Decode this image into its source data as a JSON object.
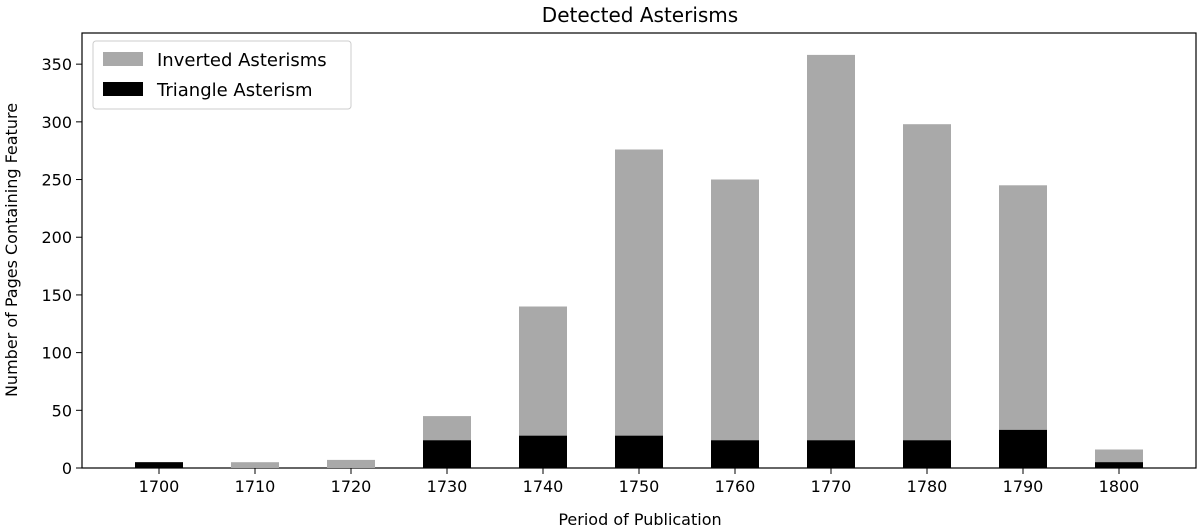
{
  "chart_data": {
    "type": "bar",
    "title": "Detected Asterisms",
    "xlabel": "Period of Publication",
    "ylabel": "Number of Pages Containing Feature",
    "categories": [
      "1700",
      "1710",
      "1720",
      "1730",
      "1740",
      "1750",
      "1760",
      "1770",
      "1780",
      "1790",
      "1800"
    ],
    "series": [
      {
        "name": "Inverted Asterisms",
        "color": "#a9a9a9",
        "values": [
          5,
          5,
          7,
          45,
          140,
          276,
          250,
          358,
          298,
          245,
          16
        ]
      },
      {
        "name": "Triangle Asterism",
        "color": "#000000",
        "values": [
          5,
          0,
          0,
          24,
          28,
          28,
          24,
          24,
          24,
          33,
          5
        ]
      }
    ],
    "ylim": [
      0,
      377
    ],
    "yticks": [
      0,
      50,
      100,
      150,
      200,
      250,
      300,
      350
    ],
    "grid": false,
    "legend_position": "top-left"
  }
}
